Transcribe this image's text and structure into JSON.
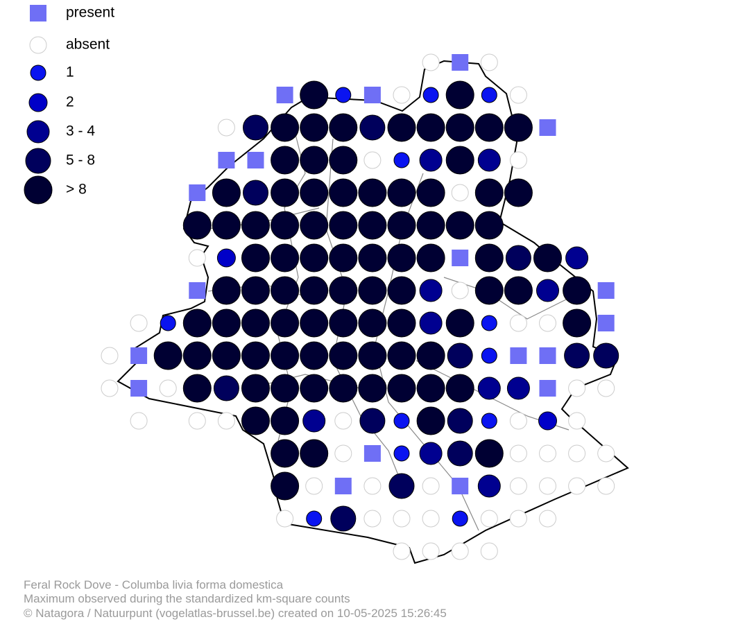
{
  "legend": [
    {
      "label": "present"
    },
    {
      "label": "absent"
    },
    {
      "label": "1"
    },
    {
      "label": "2"
    },
    {
      "label": "3 - 4"
    },
    {
      "label": "5 - 8"
    },
    {
      "label": "> 8"
    }
  ],
  "footer": [
    "Feral Rock Dove - Columba livia forma domestica",
    "Maximum observed during the standardized km-square counts",
    "© Natagora / Natuurpunt (vogelatlas-brussel.be) created on 10-05-2025 15:26:45"
  ]
}
